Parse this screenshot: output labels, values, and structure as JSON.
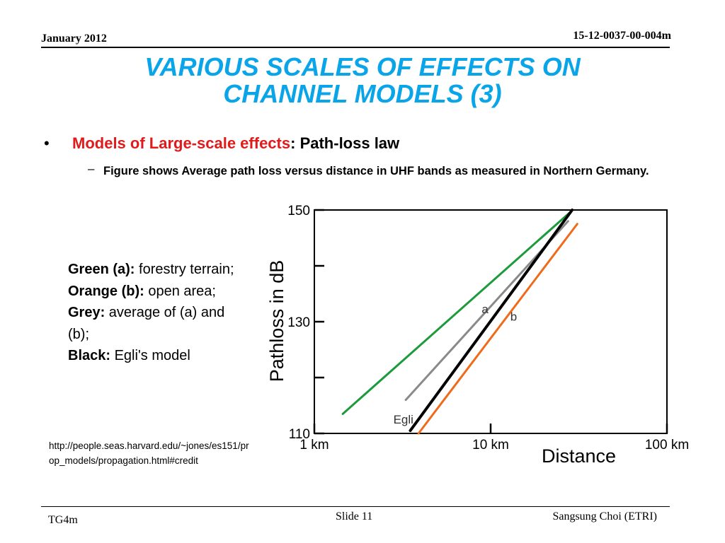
{
  "header": {
    "date": "January 2012",
    "doc_id": "15-12-0037-00-004m"
  },
  "title": {
    "line1": "VARIOUS SCALES OF EFFECTS ON",
    "line2": "CHANNEL MODELS (3)"
  },
  "bullet": {
    "marker": "•",
    "red_text": "Models of Large-scale effects",
    "colon": ":",
    "black_text": "Path-loss law",
    "sub_marker": "–",
    "sub_text": "Figure shows Average path loss versus distance in UHF bands as measured in Northern Germany."
  },
  "legend": [
    {
      "label": "Green (a):",
      "text": " forestry terrain;"
    },
    {
      "label": "Orange (b):",
      "text": " open area;"
    },
    {
      "label": "Grey:",
      "text": " average of (a) and (b);"
    },
    {
      "label": "Black:",
      "text": " Egli's model"
    }
  ],
  "credit": "http://people.seas.harvard.edu/~jones/es151/prop_models/propagation.html#credit",
  "footer": {
    "left": "TG4m",
    "center": "Slide 11",
    "right": "Sangsung Choi (ETRI)"
  },
  "colors": {
    "title": "#0aa5e8",
    "bullet_red": "#e01b1b",
    "green": "#1c9a3c",
    "orange": "#f06a1a",
    "grey": "#8a8a8a",
    "black": "#000000"
  },
  "chart_data": {
    "type": "line",
    "x_scale": "log",
    "xlabel": "Distance",
    "ylabel": "Pathloss in dB",
    "xlim": [
      1,
      100
    ],
    "ylim": [
      110,
      150
    ],
    "x_ticks": [
      {
        "value": 1,
        "label": "1 km"
      },
      {
        "value": 10,
        "label": "10 km"
      },
      {
        "value": 100,
        "label": "100 km"
      }
    ],
    "y_ticks": [
      {
        "value": 110,
        "label": "110"
      },
      {
        "value": 130,
        "label": "130"
      },
      {
        "value": 150,
        "label": "150"
      }
    ],
    "y_minor_ticks": [
      120,
      140
    ],
    "grid": false,
    "series": [
      {
        "name": "a",
        "color": "#1c9a3c",
        "x": [
          1.45,
          28.0
        ],
        "y": [
          113.5,
          149.5
        ]
      },
      {
        "name": "b",
        "color": "#f06a1a",
        "x": [
          3.9,
          31.0
        ],
        "y": [
          110.0,
          147.5
        ]
      },
      {
        "name": "",
        "color": "#8a8a8a",
        "x": [
          3.3,
          27.5
        ],
        "y": [
          116.0,
          148.0
        ]
      },
      {
        "name": "Egli",
        "color": "#000000",
        "x": [
          3.5,
          29.0
        ],
        "y": [
          110.5,
          150.0
        ]
      }
    ]
  }
}
